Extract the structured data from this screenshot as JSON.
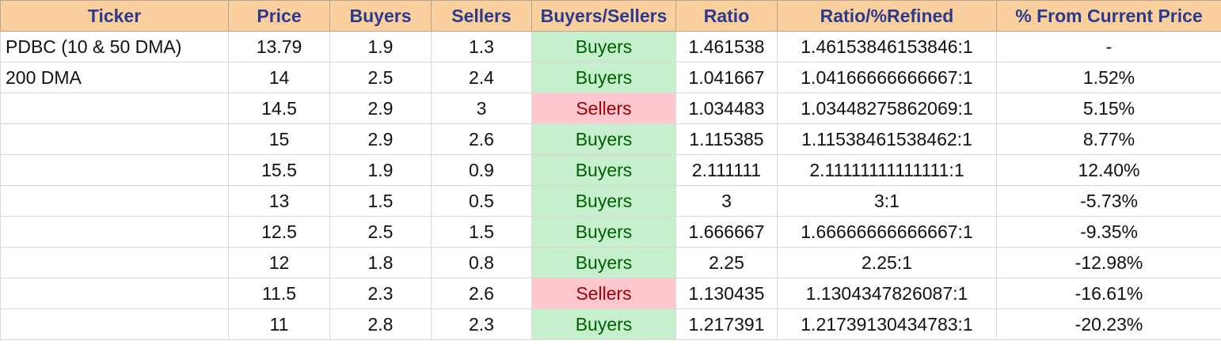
{
  "colors": {
    "header_bg": "#f9cf9e",
    "header_text": "#2d3a8c",
    "buyers_bg": "#c6efce",
    "buyers_text": "#006100",
    "sellers_bg": "#ffc7ce",
    "sellers_text": "#9c0006"
  },
  "headers": [
    "Ticker",
    "Price",
    "Buyers",
    "Sellers",
    "Buyers/Sellers",
    "Ratio",
    "Ratio/%Refined",
    "% From Current Price"
  ],
  "rows": [
    {
      "ticker": "PDBC (10 & 50 DMA)",
      "price": "13.79",
      "buyers": "1.9",
      "sellers": "1.3",
      "signal": "Buyers",
      "ratio": "1.461538",
      "refined": "1.46153846153846:1",
      "pct": "-"
    },
    {
      "ticker": "200 DMA",
      "price": "14",
      "buyers": "2.5",
      "sellers": "2.4",
      "signal": "Buyers",
      "ratio": "1.041667",
      "refined": "1.04166666666667:1",
      "pct": "1.52%"
    },
    {
      "ticker": "",
      "price": "14.5",
      "buyers": "2.9",
      "sellers": "3",
      "signal": "Sellers",
      "ratio": "1.034483",
      "refined": "1.03448275862069:1",
      "pct": "5.15%"
    },
    {
      "ticker": "",
      "price": "15",
      "buyers": "2.9",
      "sellers": "2.6",
      "signal": "Buyers",
      "ratio": "1.115385",
      "refined": "1.11538461538462:1",
      "pct": "8.77%"
    },
    {
      "ticker": "",
      "price": "15.5",
      "buyers": "1.9",
      "sellers": "0.9",
      "signal": "Buyers",
      "ratio": "2.111111",
      "refined": "2.11111111111111:1",
      "pct": "12.40%"
    },
    {
      "ticker": "",
      "price": "13",
      "buyers": "1.5",
      "sellers": "0.5",
      "signal": "Buyers",
      "ratio": "3",
      "refined": "3:1",
      "pct": "-5.73%"
    },
    {
      "ticker": "",
      "price": "12.5",
      "buyers": "2.5",
      "sellers": "1.5",
      "signal": "Buyers",
      "ratio": "1.666667",
      "refined": "1.66666666666667:1",
      "pct": "-9.35%"
    },
    {
      "ticker": "",
      "price": "12",
      "buyers": "1.8",
      "sellers": "0.8",
      "signal": "Buyers",
      "ratio": "2.25",
      "refined": "2.25:1",
      "pct": "-12.98%"
    },
    {
      "ticker": "",
      "price": "11.5",
      "buyers": "2.3",
      "sellers": "2.6",
      "signal": "Sellers",
      "ratio": "1.130435",
      "refined": "1.1304347826087:1",
      "pct": "-16.61%"
    },
    {
      "ticker": "",
      "price": "11",
      "buyers": "2.8",
      "sellers": "2.3",
      "signal": "Buyers",
      "ratio": "1.217391",
      "refined": "1.21739130434783:1",
      "pct": "-20.23%"
    }
  ]
}
